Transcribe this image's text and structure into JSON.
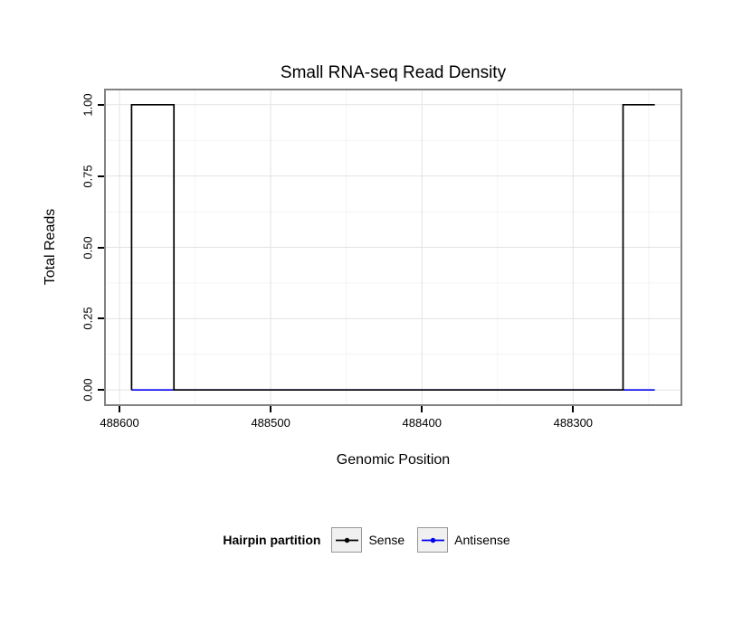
{
  "chart_data": {
    "type": "line",
    "title": "Small RNA-seq Read Density",
    "xlabel": "Genomic Position",
    "ylabel": "Total Reads",
    "x_axis_reversed": true,
    "x_range": [
      488609,
      488229
    ],
    "y_range": [
      -0.05,
      1.05
    ],
    "x_ticks": [
      {
        "value": 488600,
        "label": "488600"
      },
      {
        "value": 488500,
        "label": "488500"
      },
      {
        "value": 488400,
        "label": "488400"
      },
      {
        "value": 488300,
        "label": "488300"
      }
    ],
    "x_minor_ticks": [
      488550,
      488450,
      488350,
      488250
    ],
    "y_ticks": [
      {
        "value": 0,
        "label": "0.00"
      },
      {
        "value": 0.25,
        "label": "0.25"
      },
      {
        "value": 0.5,
        "label": "0.50"
      },
      {
        "value": 0.75,
        "label": "0.75"
      },
      {
        "value": 1,
        "label": "1.00"
      }
    ],
    "y_minor_ticks": [
      0.125,
      0.375,
      0.625,
      0.875
    ],
    "grid": true,
    "legend_position": "bottom",
    "series": [
      {
        "name": "Antisense",
        "color": "#0000ee",
        "style": "step",
        "points": [
          [
            488592,
            0
          ],
          [
            488246,
            0
          ]
        ]
      },
      {
        "name": "Sense",
        "color": "#000000",
        "style": "step",
        "points": [
          [
            488592,
            0
          ],
          [
            488592,
            1
          ],
          [
            488564,
            1
          ],
          [
            488564,
            0
          ],
          [
            488267,
            0
          ],
          [
            488267,
            1
          ],
          [
            488246,
            1
          ]
        ]
      }
    ],
    "legend": {
      "title": "Hairpin partition",
      "entries": [
        {
          "label": "Sense",
          "color": "#000000"
        },
        {
          "label": "Antisense",
          "color": "#0000ee"
        }
      ]
    }
  }
}
